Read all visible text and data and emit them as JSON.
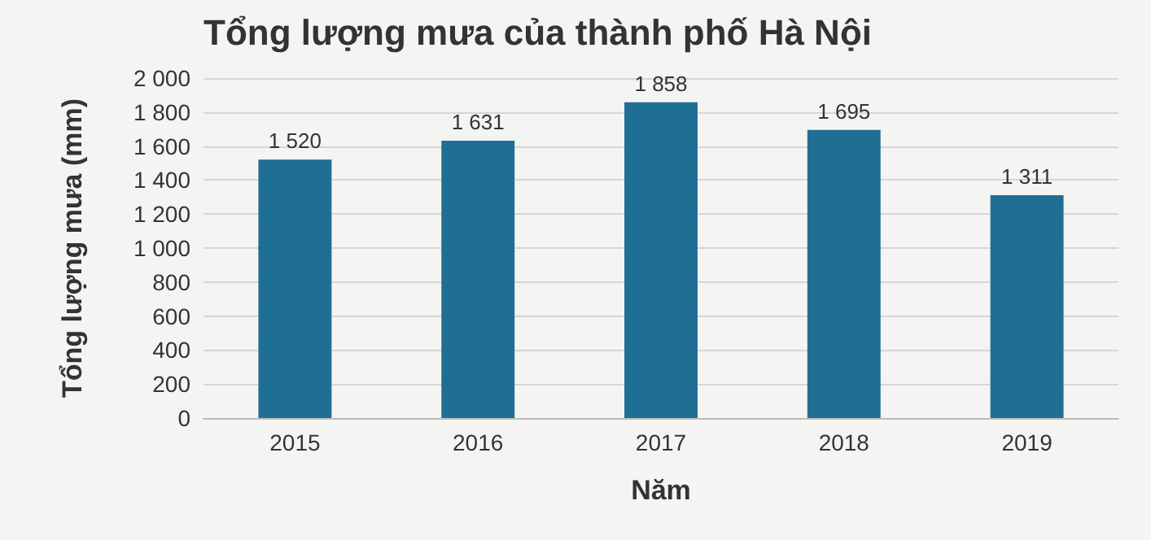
{
  "chart_data": {
    "type": "bar",
    "title": "Tổng lượng mưa của thành phố Hà Nội",
    "xlabel": "Năm",
    "ylabel": "Tổng lượng mưa (mm)",
    "categories": [
      "2015",
      "2016",
      "2017",
      "2018",
      "2019"
    ],
    "values": [
      1520,
      1631,
      1858,
      1695,
      1311
    ],
    "value_labels": [
      "1 520",
      "1 631",
      "1 858",
      "1 695",
      "1 311"
    ],
    "color": "#1f6f95",
    "ylim": [
      0,
      2000
    ],
    "yticks": [
      0,
      {
        "value": 200,
        "label": "200"
      },
      400,
      600,
      800,
      {
        "value": 1000,
        "label": "1 000"
      },
      {
        "value": 1200,
        "label": "1 200"
      },
      {
        "value": 1400,
        "label": "1 400"
      },
      {
        "value": 1600,
        "label": "1 600"
      },
      {
        "value": 1800,
        "label": "1 800"
      },
      {
        "value": 2000,
        "label": "2 000"
      }
    ],
    "grid": "y"
  }
}
